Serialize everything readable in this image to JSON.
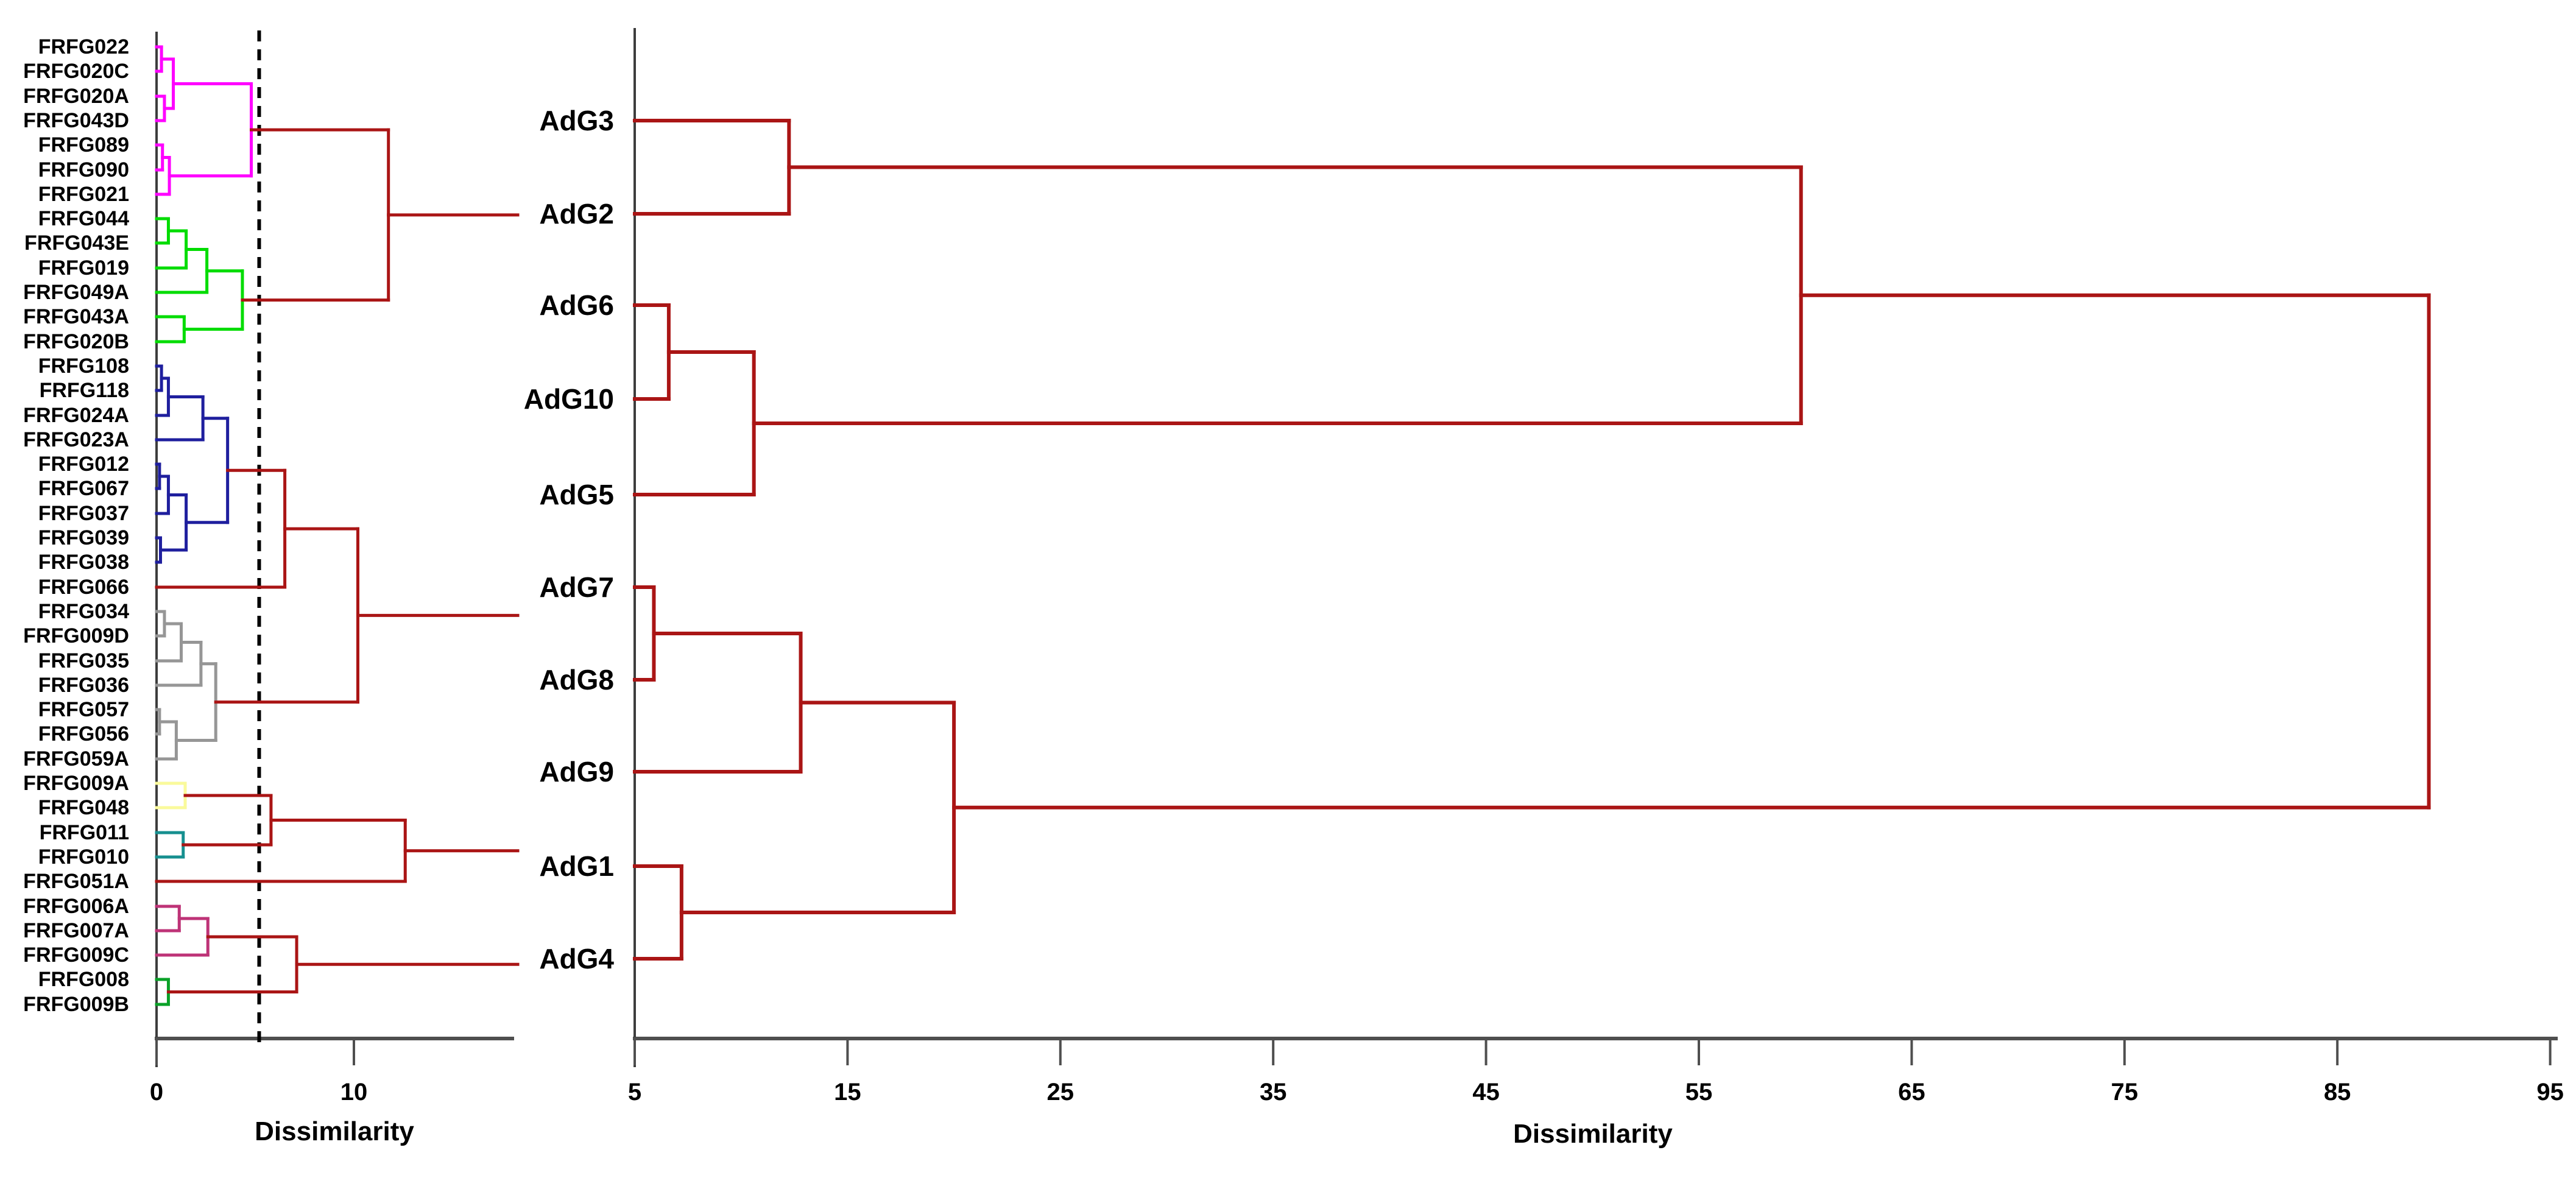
{
  "figure": {
    "background": "#FFFFFF",
    "description": "Two hierarchical clustering dendrograms (AFLP dissimilarity): individual FRFG genotypes (left, colored clusters with cut line) and AdG groups (right)"
  },
  "chart_data": [
    {
      "type": "dendrogram",
      "panel": "left",
      "orientation": "horizontal-right",
      "xlabel": "Dissimilarity",
      "axis_ticks": [
        0,
        10
      ],
      "axis_range": [
        0,
        18
      ],
      "grid": false,
      "legend_position": "none",
      "cut_line_value": 5.2,
      "cut_line_style": "dashed-black",
      "leaves": [
        "FRFG022",
        "FRFG020C",
        "FRFG020A",
        "FRFG043D",
        "FRFG089",
        "FRFG090",
        "FRFG021",
        "FRFG044",
        "FRFG043E",
        "FRFG019",
        "FRFG049A",
        "FRFG043A",
        "FRFG020B",
        "FRFG108",
        "FRFG118",
        "FRFG024A",
        "FRFG023A",
        "FRFG012",
        "FRFG067",
        "FRFG037",
        "FRFG039",
        "FRFG038",
        "FRFG066",
        "FRFG034",
        "FRFG009D",
        "FRFG035",
        "FRFG036",
        "FRFG057",
        "FRFG056",
        "FRFG059A",
        "FRFG009A",
        "FRFG048",
        "FRFG011",
        "FRFG010",
        "FRFG051A",
        "FRFG006A",
        "FRFG007A",
        "FRFG009C",
        "FRFG008",
        "FRFG009B"
      ],
      "colors": {
        "magenta": "#FF00FF",
        "green": "#00DC00",
        "navy": "#1F1F9E",
        "gray": "#969696",
        "yellow": "#FAFA9B",
        "teal": "#168F8F",
        "crimson": "#BE3377",
        "darkgreen": "#0AA128",
        "linkage": "#AA1515",
        "axis": "#4F4F4F",
        "baseline": "#3D3D3D",
        "cutline": "#000000"
      },
      "forest": [
        {
          "h": 11.75,
          "color": "linkage",
          "exit": true,
          "children": [
            {
              "h": 4.8,
              "color": "magenta",
              "children": [
                {
                  "h": 0.85,
                  "color": "magenta",
                  "children": [
                    {
                      "h": 0.25,
                      "color": "magenta",
                      "children": [
                        {
                          "leaf": "FRFG022"
                        },
                        {
                          "leaf": "FRFG020C"
                        }
                      ]
                    },
                    {
                      "h": 0.4,
                      "color": "magenta",
                      "children": [
                        {
                          "leaf": "FRFG020A"
                        },
                        {
                          "leaf": "FRFG043D"
                        }
                      ]
                    }
                  ]
                },
                {
                  "h": 0.65,
                  "color": "magenta",
                  "children": [
                    {
                      "h": 0.3,
                      "color": "magenta",
                      "children": [
                        {
                          "leaf": "FRFG089"
                        },
                        {
                          "leaf": "FRFG090"
                        }
                      ]
                    },
                    {
                      "leaf": "FRFG021"
                    }
                  ]
                }
              ]
            },
            {
              "h": 4.35,
              "color": "green",
              "children": [
                {
                  "h": 2.55,
                  "color": "green",
                  "children": [
                    {
                      "h": 1.5,
                      "color": "green",
                      "children": [
                        {
                          "h": 0.6,
                          "color": "green",
                          "children": [
                            {
                              "leaf": "FRFG044"
                            },
                            {
                              "leaf": "FRFG043E"
                            }
                          ]
                        },
                        {
                          "leaf": "FRFG019"
                        }
                      ]
                    },
                    {
                      "leaf": "FRFG049A"
                    }
                  ]
                },
                {
                  "h": 1.4,
                  "color": "green",
                  "children": [
                    {
                      "leaf": "FRFG043A"
                    },
                    {
                      "leaf": "FRFG020B"
                    }
                  ]
                }
              ]
            }
          ]
        },
        {
          "h": 10.2,
          "color": "linkage",
          "exit": true,
          "children": [
            {
              "h": 6.5,
              "color": "linkage",
              "children": [
                {
                  "h": 3.6,
                  "color": "navy",
                  "children": [
                    {
                      "h": 2.35,
                      "color": "navy",
                      "children": [
                        {
                          "h": 0.6,
                          "color": "navy",
                          "children": [
                            {
                              "h": 0.25,
                              "color": "navy",
                              "children": [
                                {
                                  "leaf": "FRFG108"
                                },
                                {
                                  "leaf": "FRFG118"
                                }
                              ]
                            },
                            {
                              "leaf": "FRFG024A"
                            }
                          ]
                        },
                        {
                          "leaf": "FRFG023A"
                        }
                      ]
                    },
                    {
                      "h": 1.5,
                      "color": "navy",
                      "children": [
                        {
                          "h": 0.6,
                          "color": "navy",
                          "children": [
                            {
                              "h": 0.15,
                              "color": "navy",
                              "children": [
                                {
                                  "leaf": "FRFG012"
                                },
                                {
                                  "leaf": "FRFG067"
                                }
                              ]
                            },
                            {
                              "leaf": "FRFG037"
                            }
                          ]
                        },
                        {
                          "h": 0.2,
                          "color": "navy",
                          "children": [
                            {
                              "leaf": "FRFG039"
                            },
                            {
                              "leaf": "FRFG038"
                            }
                          ]
                        }
                      ]
                    }
                  ]
                },
                {
                  "leaf": "FRFG066"
                }
              ]
            },
            {
              "h": 3.0,
              "color": "gray",
              "children": [
                {
                  "h": 2.25,
                  "color": "gray",
                  "children": [
                    {
                      "h": 1.25,
                      "color": "gray",
                      "children": [
                        {
                          "h": 0.4,
                          "color": "gray",
                          "children": [
                            {
                              "leaf": "FRFG034"
                            },
                            {
                              "leaf": "FRFG009D"
                            }
                          ]
                        },
                        {
                          "leaf": "FRFG035"
                        }
                      ]
                    },
                    {
                      "leaf": "FRFG036"
                    }
                  ]
                },
                {
                  "h": 1.0,
                  "color": "gray",
                  "children": [
                    {
                      "h": 0.15,
                      "color": "gray",
                      "children": [
                        {
                          "leaf": "FRFG057"
                        },
                        {
                          "leaf": "FRFG056"
                        }
                      ]
                    },
                    {
                      "leaf": "FRFG059A"
                    }
                  ]
                }
              ]
            }
          ]
        },
        {
          "h": 12.6,
          "color": "linkage",
          "exit": true,
          "children": [
            {
              "h": 5.8,
              "color": "linkage",
              "children": [
                {
                  "h": 1.45,
                  "color": "yellow",
                  "children": [
                    {
                      "leaf": "FRFG009A"
                    },
                    {
                      "leaf": "FRFG048"
                    }
                  ]
                },
                {
                  "h": 1.35,
                  "color": "teal",
                  "children": [
                    {
                      "leaf": "FRFG011"
                    },
                    {
                      "leaf": "FRFG010"
                    }
                  ]
                }
              ]
            },
            {
              "leaf": "FRFG051A"
            }
          ]
        },
        {
          "h": 7.1,
          "color": "linkage",
          "exit": true,
          "children": [
            {
              "h": 2.6,
              "color": "crimson",
              "children": [
                {
                  "h": 1.15,
                  "color": "crimson",
                  "children": [
                    {
                      "leaf": "FRFG006A"
                    },
                    {
                      "leaf": "FRFG007A"
                    }
                  ]
                },
                {
                  "leaf": "FRFG009C"
                }
              ]
            },
            {
              "h": 0.6,
              "color": "darkgreen",
              "children": [
                {
                  "leaf": "FRFG008"
                },
                {
                  "leaf": "FRFG009B"
                }
              ]
            }
          ]
        }
      ]
    },
    {
      "type": "dendrogram",
      "panel": "right",
      "orientation": "horizontal-right",
      "xlabel": "Dissimilarity",
      "axis_ticks": [
        5,
        15,
        25,
        35,
        45,
        55,
        65,
        75,
        85,
        95
      ],
      "axis_range": [
        5,
        95
      ],
      "grid": false,
      "legend_position": "none",
      "leaves": [
        "AdG3",
        "AdG2",
        "AdG6",
        "AdG10",
        "AdG5",
        "AdG7",
        "AdG8",
        "AdG9",
        "AdG1",
        "AdG4"
      ],
      "colors": {
        "linkage": "#AA1515",
        "axis": "#4F4F4F",
        "baseline": "#3D3D3D"
      },
      "forest": [
        {
          "h": 89.3,
          "color": "linkage",
          "children": [
            {
              "h": 59.8,
              "color": "linkage",
              "children": [
                {
                  "h": 12.25,
                  "color": "linkage",
                  "children": [
                    {
                      "leaf": "AdG3"
                    },
                    {
                      "leaf": "AdG2"
                    }
                  ]
                },
                {
                  "h": 10.6,
                  "color": "linkage",
                  "children": [
                    {
                      "h": 6.6,
                      "color": "linkage",
                      "children": [
                        {
                          "leaf": "AdG6"
                        },
                        {
                          "leaf": "AdG10"
                        }
                      ]
                    },
                    {
                      "leaf": "AdG5"
                    }
                  ]
                }
              ]
            },
            {
              "h": 20.0,
              "color": "linkage",
              "children": [
                {
                  "h": 12.8,
                  "color": "linkage",
                  "children": [
                    {
                      "h": 5.9,
                      "color": "linkage",
                      "children": [
                        {
                          "leaf": "AdG7"
                        },
                        {
                          "leaf": "AdG8"
                        }
                      ]
                    },
                    {
                      "leaf": "AdG9"
                    }
                  ]
                },
                {
                  "h": 7.2,
                  "color": "linkage",
                  "children": [
                    {
                      "leaf": "AdG1"
                    },
                    {
                      "leaf": "AdG4"
                    }
                  ]
                }
              ]
            }
          ]
        }
      ]
    }
  ]
}
